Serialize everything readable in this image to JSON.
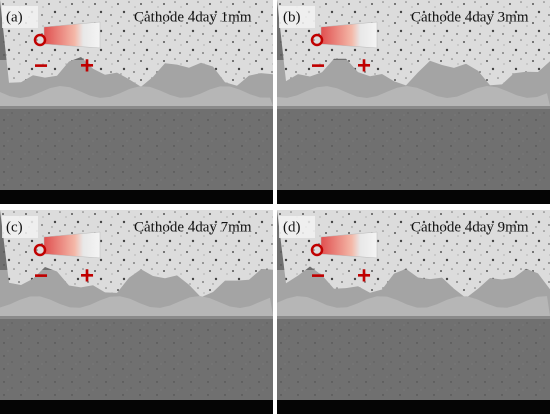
{
  "panels": [
    {
      "label": "(a)",
      "title": "Cathode  4day 1mm",
      "minus": "−",
      "plus": "+"
    },
    {
      "label": "(b)",
      "title": "Cathode  4day 3mm",
      "minus": "−",
      "plus": "+"
    },
    {
      "label": "(c)",
      "title": "Cathode  4day 7mm",
      "minus": "−",
      "plus": "+"
    },
    {
      "label": "(d)",
      "title": "Cathode  4day 9mm",
      "minus": "−",
      "plus": "+"
    }
  ]
}
